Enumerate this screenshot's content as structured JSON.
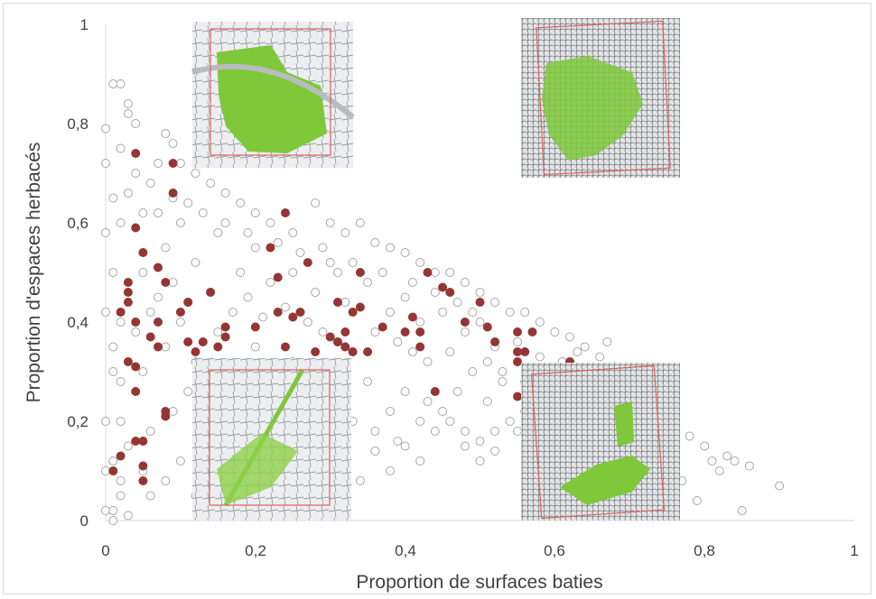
{
  "chart_data": {
    "type": "scatter",
    "xlabel": "Proportion de surfaces baties",
    "ylabel": "Proportion d'espaces herbacés",
    "xlim": [
      0,
      1
    ],
    "ylim": [
      0,
      1
    ],
    "x_ticks": [
      "0",
      "0,2",
      "0,4",
      "0,6",
      "0,8",
      "1"
    ],
    "y_ticks": [
      "0",
      "0,2",
      "0,4",
      "0,6",
      "0,8",
      "1"
    ],
    "grid": false,
    "series": [
      {
        "marker": "open-circle",
        "color": "#a6a6a6",
        "points": [
          [
            0.0,
            0.02
          ],
          [
            0.01,
            0.0
          ],
          [
            0.02,
            0.05
          ],
          [
            0.01,
            0.12
          ],
          [
            0.0,
            0.2
          ],
          [
            0.02,
            0.28
          ],
          [
            0.01,
            0.35
          ],
          [
            0.0,
            0.42
          ],
          [
            0.01,
            0.5
          ],
          [
            0.0,
            0.58
          ],
          [
            0.01,
            0.65
          ],
          [
            0.0,
            0.72
          ],
          [
            0.0,
            0.79
          ],
          [
            0.01,
            0.88
          ],
          [
            0.02,
            0.88
          ],
          [
            0.03,
            0.84
          ],
          [
            0.03,
            0.82
          ],
          [
            0.04,
            0.8
          ],
          [
            0.02,
            0.75
          ],
          [
            0.04,
            0.7
          ],
          [
            0.03,
            0.66
          ],
          [
            0.05,
            0.62
          ],
          [
            0.06,
            0.68
          ],
          [
            0.07,
            0.72
          ],
          [
            0.08,
            0.78
          ],
          [
            0.09,
            0.76
          ],
          [
            0.1,
            0.72
          ],
          [
            0.12,
            0.7
          ],
          [
            0.14,
            0.68
          ],
          [
            0.16,
            0.66
          ],
          [
            0.18,
            0.64
          ],
          [
            0.2,
            0.62
          ],
          [
            0.22,
            0.6
          ],
          [
            0.25,
            0.58
          ],
          [
            0.28,
            0.64
          ],
          [
            0.3,
            0.6
          ],
          [
            0.32,
            0.58
          ],
          [
            0.34,
            0.6
          ],
          [
            0.36,
            0.56
          ],
          [
            0.38,
            0.55
          ],
          [
            0.4,
            0.54
          ],
          [
            0.42,
            0.52
          ],
          [
            0.44,
            0.5
          ],
          [
            0.46,
            0.5
          ],
          [
            0.48,
            0.48
          ],
          [
            0.5,
            0.46
          ],
          [
            0.52,
            0.44
          ],
          [
            0.54,
            0.42
          ],
          [
            0.56,
            0.42
          ],
          [
            0.58,
            0.4
          ],
          [
            0.6,
            0.38
          ],
          [
            0.62,
            0.37
          ],
          [
            0.64,
            0.35
          ],
          [
            0.66,
            0.33
          ],
          [
            0.68,
            0.31
          ],
          [
            0.7,
            0.28
          ],
          [
            0.72,
            0.25
          ],
          [
            0.74,
            0.22
          ],
          [
            0.76,
            0.2
          ],
          [
            0.78,
            0.17
          ],
          [
            0.8,
            0.15
          ],
          [
            0.81,
            0.12
          ],
          [
            0.82,
            0.1
          ],
          [
            0.83,
            0.13
          ],
          [
            0.84,
            0.12
          ],
          [
            0.85,
            0.02
          ],
          [
            0.86,
            0.11
          ],
          [
            0.9,
            0.07
          ],
          [
            0.79,
            0.04
          ],
          [
            0.77,
            0.08
          ],
          [
            0.05,
            0.5
          ],
          [
            0.08,
            0.55
          ],
          [
            0.1,
            0.6
          ],
          [
            0.12,
            0.52
          ],
          [
            0.15,
            0.58
          ],
          [
            0.18,
            0.5
          ],
          [
            0.2,
            0.55
          ],
          [
            0.22,
            0.48
          ],
          [
            0.25,
            0.5
          ],
          [
            0.28,
            0.46
          ],
          [
            0.3,
            0.52
          ],
          [
            0.32,
            0.44
          ],
          [
            0.35,
            0.48
          ],
          [
            0.38,
            0.42
          ],
          [
            0.4,
            0.45
          ],
          [
            0.42,
            0.4
          ],
          [
            0.45,
            0.42
          ],
          [
            0.48,
            0.38
          ],
          [
            0.5,
            0.4
          ],
          [
            0.52,
            0.35
          ],
          [
            0.55,
            0.36
          ],
          [
            0.58,
            0.33
          ],
          [
            0.6,
            0.3
          ],
          [
            0.62,
            0.28
          ],
          [
            0.65,
            0.3
          ],
          [
            0.68,
            0.26
          ],
          [
            0.7,
            0.24
          ],
          [
            0.05,
            0.3
          ],
          [
            0.08,
            0.35
          ],
          [
            0.1,
            0.4
          ],
          [
            0.12,
            0.32
          ],
          [
            0.15,
            0.38
          ],
          [
            0.18,
            0.3
          ],
          [
            0.2,
            0.35
          ],
          [
            0.22,
            0.28
          ],
          [
            0.25,
            0.32
          ],
          [
            0.28,
            0.26
          ],
          [
            0.3,
            0.3
          ],
          [
            0.32,
            0.25
          ],
          [
            0.35,
            0.28
          ],
          [
            0.38,
            0.22
          ],
          [
            0.4,
            0.26
          ],
          [
            0.42,
            0.2
          ],
          [
            0.45,
            0.22
          ],
          [
            0.48,
            0.18
          ],
          [
            0.5,
            0.16
          ],
          [
            0.52,
            0.14
          ],
          [
            0.55,
            0.18
          ],
          [
            0.58,
            0.15
          ],
          [
            0.62,
            0.2
          ],
          [
            0.66,
            0.18
          ],
          [
            0.7,
            0.16
          ],
          [
            0.74,
            0.14
          ],
          [
            0.03,
            0.15
          ],
          [
            0.05,
            0.1
          ],
          [
            0.06,
            0.05
          ],
          [
            0.08,
            0.08
          ],
          [
            0.1,
            0.12
          ],
          [
            0.12,
            0.05
          ],
          [
            0.13,
            0.15
          ],
          [
            0.15,
            0.1
          ],
          [
            0.18,
            0.16
          ],
          [
            0.2,
            0.12
          ],
          [
            0.22,
            0.08
          ],
          [
            0.25,
            0.14
          ],
          [
            0.28,
            0.1
          ],
          [
            0.3,
            0.06
          ],
          [
            0.32,
            0.12
          ],
          [
            0.34,
            0.08
          ],
          [
            0.36,
            0.14
          ],
          [
            0.38,
            0.1
          ],
          [
            0.4,
            0.15
          ],
          [
            0.42,
            0.12
          ],
          [
            0.44,
            0.18
          ],
          [
            0.46,
            0.2
          ],
          [
            0.48,
            0.15
          ],
          [
            0.5,
            0.12
          ],
          [
            0.52,
            0.18
          ],
          [
            0.54,
            0.2
          ],
          [
            0.56,
            0.22
          ],
          [
            0.6,
            0.24
          ],
          [
            0.64,
            0.22
          ],
          [
            0.68,
            0.2
          ],
          [
            0.72,
            0.18
          ],
          [
            0.06,
            0.18
          ],
          [
            0.09,
            0.22
          ],
          [
            0.11,
            0.26
          ],
          [
            0.13,
            0.2
          ],
          [
            0.16,
            0.24
          ],
          [
            0.19,
            0.2
          ],
          [
            0.23,
            0.22
          ],
          [
            0.26,
            0.2
          ],
          [
            0.29,
            0.22
          ],
          [
            0.33,
            0.2
          ],
          [
            0.36,
            0.18
          ],
          [
            0.39,
            0.16
          ],
          [
            0.43,
            0.24
          ],
          [
            0.47,
            0.26
          ],
          [
            0.51,
            0.24
          ],
          [
            0.53,
            0.28
          ],
          [
            0.57,
            0.3
          ],
          [
            0.61,
            0.32
          ],
          [
            0.63,
            0.34
          ],
          [
            0.67,
            0.36
          ],
          [
            0.07,
            0.45
          ],
          [
            0.09,
            0.48
          ],
          [
            0.11,
            0.44
          ],
          [
            0.14,
            0.46
          ],
          [
            0.17,
            0.42
          ],
          [
            0.19,
            0.45
          ],
          [
            0.21,
            0.41
          ],
          [
            0.24,
            0.43
          ],
          [
            0.27,
            0.4
          ],
          [
            0.29,
            0.38
          ],
          [
            0.31,
            0.36
          ],
          [
            0.33,
            0.34
          ],
          [
            0.36,
            0.38
          ],
          [
            0.39,
            0.36
          ],
          [
            0.41,
            0.34
          ],
          [
            0.43,
            0.32
          ],
          [
            0.46,
            0.34
          ],
          [
            0.49,
            0.3
          ],
          [
            0.51,
            0.32
          ],
          [
            0.53,
            0.3
          ],
          [
            0.56,
            0.28
          ],
          [
            0.59,
            0.26
          ],
          [
            0.04,
            0.38
          ],
          [
            0.06,
            0.42
          ],
          [
            0.07,
            0.62
          ],
          [
            0.09,
            0.65
          ],
          [
            0.11,
            0.64
          ],
          [
            0.13,
            0.62
          ],
          [
            0.16,
            0.6
          ],
          [
            0.19,
            0.58
          ],
          [
            0.23,
            0.56
          ],
          [
            0.26,
            0.54
          ],
          [
            0.29,
            0.55
          ],
          [
            0.31,
            0.5
          ],
          [
            0.33,
            0.52
          ],
          [
            0.37,
            0.5
          ],
          [
            0.41,
            0.48
          ],
          [
            0.44,
            0.46
          ],
          [
            0.47,
            0.44
          ],
          [
            0.49,
            0.42
          ],
          [
            0.02,
            0.6
          ],
          [
            0.02,
            0.4
          ],
          [
            0.02,
            0.2
          ],
          [
            0.01,
            0.3
          ],
          [
            0.0,
            0.1
          ],
          [
            0.01,
            0.02
          ],
          [
            0.03,
            0.01
          ],
          [
            0.02,
            0.08
          ]
        ]
      },
      {
        "marker": "filled-circle",
        "color": "#943634",
        "points": [
          [
            0.04,
            0.74
          ],
          [
            0.09,
            0.72
          ],
          [
            0.09,
            0.66
          ],
          [
            0.04,
            0.59
          ],
          [
            0.05,
            0.54
          ],
          [
            0.07,
            0.51
          ],
          [
            0.08,
            0.48
          ],
          [
            0.03,
            0.48
          ],
          [
            0.03,
            0.46
          ],
          [
            0.03,
            0.44
          ],
          [
            0.02,
            0.42
          ],
          [
            0.04,
            0.4
          ],
          [
            0.06,
            0.37
          ],
          [
            0.07,
            0.35
          ],
          [
            0.07,
            0.4
          ],
          [
            0.1,
            0.42
          ],
          [
            0.11,
            0.44
          ],
          [
            0.11,
            0.36
          ],
          [
            0.12,
            0.34
          ],
          [
            0.13,
            0.36
          ],
          [
            0.14,
            0.46
          ],
          [
            0.15,
            0.35
          ],
          [
            0.16,
            0.37
          ],
          [
            0.16,
            0.39
          ],
          [
            0.2,
            0.39
          ],
          [
            0.22,
            0.55
          ],
          [
            0.24,
            0.62
          ],
          [
            0.23,
            0.49
          ],
          [
            0.23,
            0.42
          ],
          [
            0.24,
            0.35
          ],
          [
            0.25,
            0.41
          ],
          [
            0.26,
            0.42
          ],
          [
            0.27,
            0.52
          ],
          [
            0.28,
            0.34
          ],
          [
            0.3,
            0.37
          ],
          [
            0.31,
            0.36
          ],
          [
            0.31,
            0.44
          ],
          [
            0.32,
            0.35
          ],
          [
            0.32,
            0.38
          ],
          [
            0.33,
            0.34
          ],
          [
            0.33,
            0.42
          ],
          [
            0.34,
            0.43
          ],
          [
            0.34,
            0.5
          ],
          [
            0.35,
            0.34
          ],
          [
            0.37,
            0.39
          ],
          [
            0.4,
            0.38
          ],
          [
            0.41,
            0.41
          ],
          [
            0.42,
            0.35
          ],
          [
            0.42,
            0.38
          ],
          [
            0.43,
            0.5
          ],
          [
            0.44,
            0.26
          ],
          [
            0.45,
            0.47
          ],
          [
            0.46,
            0.46
          ],
          [
            0.48,
            0.4
          ],
          [
            0.5,
            0.44
          ],
          [
            0.51,
            0.39
          ],
          [
            0.52,
            0.36
          ],
          [
            0.55,
            0.38
          ],
          [
            0.55,
            0.32
          ],
          [
            0.55,
            0.34
          ],
          [
            0.56,
            0.34
          ],
          [
            0.57,
            0.38
          ],
          [
            0.55,
            0.25
          ],
          [
            0.62,
            0.32
          ],
          [
            0.03,
            0.32
          ],
          [
            0.04,
            0.31
          ],
          [
            0.04,
            0.26
          ],
          [
            0.08,
            0.22
          ],
          [
            0.08,
            0.21
          ],
          [
            0.04,
            0.16
          ],
          [
            0.05,
            0.16
          ],
          [
            0.02,
            0.13
          ],
          [
            0.05,
            0.11
          ],
          [
            0.01,
            0.1
          ],
          [
            0.05,
            0.08
          ]
        ]
      }
    ]
  }
}
